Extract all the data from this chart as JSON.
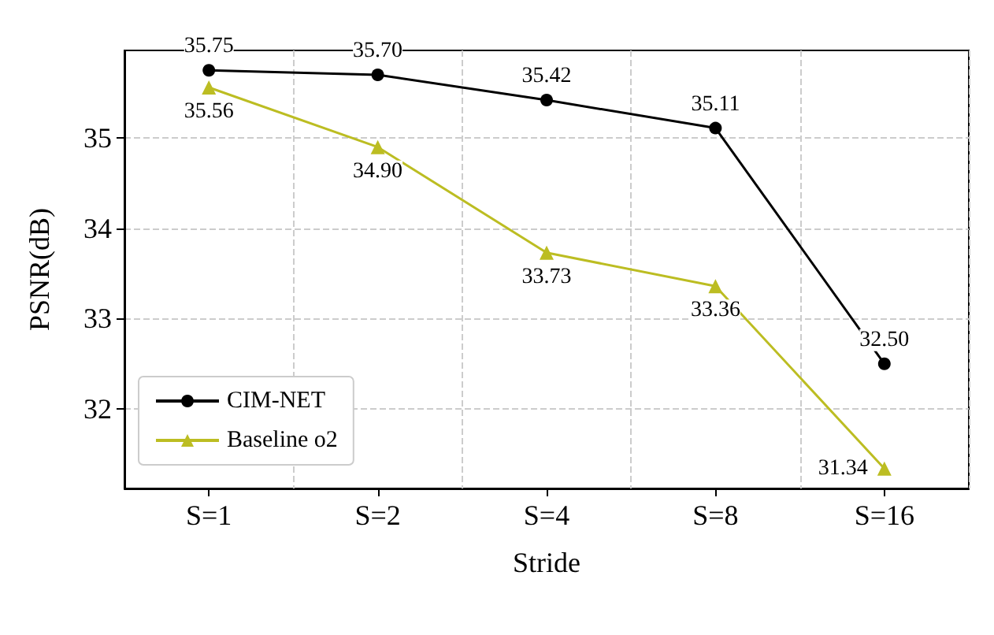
{
  "chart_data": {
    "type": "line",
    "xlabel": "Stride",
    "ylabel": "PSNR(dB)",
    "categories": [
      "S=1",
      "S=2",
      "S=4",
      "S=8",
      "S=16"
    ],
    "series": [
      {
        "name": "CIM-NET",
        "color": "#000000",
        "marker": "circle",
        "values": [
          35.75,
          35.7,
          35.42,
          35.11,
          32.5
        ],
        "value_labels": [
          "35.75",
          "35.70",
          "35.42",
          "35.11",
          "32.50"
        ]
      },
      {
        "name": "Baseline o2",
        "color": "#bcbd22",
        "marker": "triangle",
        "values": [
          35.56,
          34.9,
          33.73,
          33.36,
          31.34
        ],
        "value_labels": [
          "35.56",
          "34.90",
          "33.73",
          "33.36",
          "31.34"
        ]
      }
    ],
    "ylim": [
      31.12,
      35.97
    ],
    "yticks": [
      32,
      33,
      34,
      35
    ],
    "grid": true,
    "legend": "bottom left",
    "line_style": "solid"
  }
}
